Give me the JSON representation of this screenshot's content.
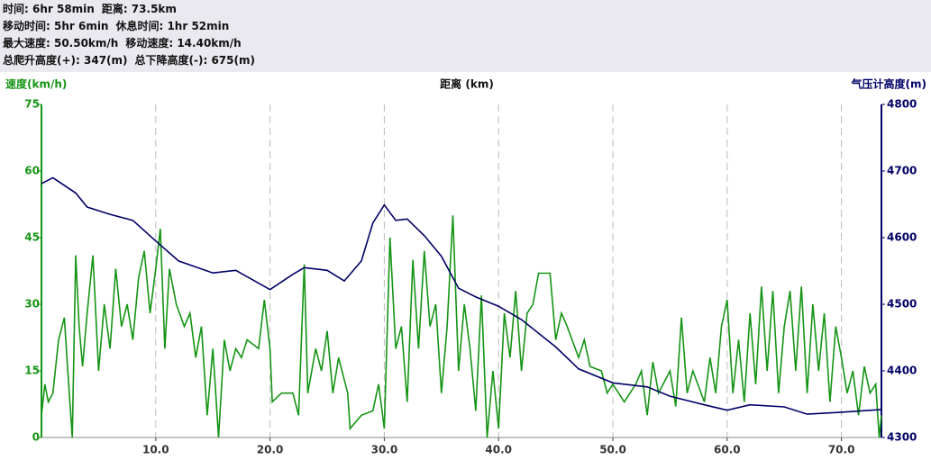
{
  "header": {
    "lines": [
      [
        "时间: 6hr 58min",
        "距离: 73.5km"
      ],
      [
        "移动时间: 5hr 6min",
        "休息时间: 1hr 52min"
      ],
      [
        "最大速度: 50.50km/h",
        "移动速度: 14.40km/h"
      ],
      [
        "总爬升高度(+): 347(m)",
        "总下降高度(-): 675(m)"
      ]
    ]
  },
  "chart_data": {
    "type": "line",
    "x_label": "距离 (km)",
    "y_label": "速度(km/h)",
    "y2_label": "气压计高度(m)",
    "xlim": [
      0,
      73.5
    ],
    "xticks": [
      {
        "value": 10,
        "label": "10.0"
      },
      {
        "value": 20,
        "label": "20.0"
      },
      {
        "value": 30,
        "label": "30.0"
      },
      {
        "value": 40,
        "label": "40.0"
      },
      {
        "value": 50,
        "label": "50.0"
      },
      {
        "value": 60,
        "label": "60.0"
      },
      {
        "value": 70,
        "label": "70.0"
      }
    ],
    "ylim": [
      0,
      75
    ],
    "yticks": [
      0,
      15,
      30,
      45,
      60,
      75
    ],
    "y2lim": [
      4300,
      4800
    ],
    "y2ticks": [
      4300,
      4400,
      4500,
      4600,
      4700,
      4800
    ],
    "grid": true,
    "series": [
      {
        "name": "速度",
        "axis": "y",
        "color": "#159415",
        "x": [
          0,
          0.3,
          0.6,
          1,
          1.5,
          2,
          2.3,
          2.7,
          3,
          3.3,
          3.6,
          4,
          4.5,
          5,
          5.5,
          6,
          6.5,
          7,
          7.5,
          8,
          8.5,
          9,
          9.5,
          10,
          10.4,
          10.8,
          11.2,
          11.8,
          12.5,
          13,
          13.5,
          14,
          14.5,
          15,
          15.5,
          16,
          16.5,
          17,
          17.5,
          18,
          19,
          19.5,
          20,
          20.2,
          21,
          22,
          22.5,
          23,
          23.3,
          24,
          24.5,
          25,
          25.5,
          26,
          26.8,
          27,
          28,
          29,
          29.5,
          30,
          30.5,
          31,
          31.5,
          32,
          32.5,
          33,
          33.5,
          34,
          34.5,
          35,
          35.5,
          36,
          36.5,
          37,
          37.5,
          38,
          38.5,
          39,
          39.5,
          40,
          40.5,
          41,
          41.5,
          42,
          42.5,
          43,
          43.5,
          44.5,
          45,
          45.5,
          46,
          47,
          47.5,
          48,
          49,
          49.5,
          50,
          51,
          52,
          52.5,
          53,
          53.5,
          54,
          55,
          55.5,
          56,
          56.5,
          57,
          58,
          58.5,
          59,
          59.5,
          60,
          60.5,
          61,
          61.5,
          62,
          62.5,
          63,
          63.5,
          64,
          64.5,
          65,
          65.5,
          66,
          66.5,
          67,
          67.5,
          68,
          68.5,
          69,
          69.5,
          70,
          70.5,
          71,
          71.5,
          72,
          72.5,
          73,
          73.3,
          73.5
        ],
        "values": [
          5,
          12,
          8,
          10,
          22,
          27,
          15,
          0,
          41,
          25,
          16,
          28,
          41,
          15,
          30,
          20,
          38,
          25,
          30,
          22,
          36,
          42,
          28,
          38,
          47,
          20,
          38,
          30,
          25,
          28,
          18,
          25,
          5,
          20,
          0,
          22,
          15,
          20,
          18,
          22,
          20,
          31,
          20,
          8,
          10,
          10,
          5,
          39,
          10,
          20,
          15,
          24,
          10,
          18,
          10,
          2,
          5,
          6,
          12,
          2,
          45,
          20,
          25,
          8,
          40,
          20,
          42,
          25,
          30,
          10,
          25,
          50,
          15,
          30,
          20,
          6,
          32,
          0,
          15,
          2,
          28,
          18,
          33,
          15,
          28,
          30,
          37,
          37,
          22,
          28,
          25,
          18,
          22,
          16,
          15,
          10,
          12,
          8,
          12,
          15,
          5,
          17,
          10,
          15,
          7,
          27,
          10,
          15,
          8,
          18,
          10,
          25,
          31,
          10,
          22,
          8,
          28,
          12,
          34,
          15,
          33,
          10,
          25,
          33,
          15,
          34,
          10,
          30,
          15,
          28,
          8,
          25,
          18,
          10,
          15,
          5,
          16,
          10,
          12,
          0,
          5
        ]
      },
      {
        "name": "气压计高度",
        "axis": "y2",
        "color": "#000066",
        "x": [
          0,
          1,
          3,
          4,
          6,
          8,
          10,
          12,
          15,
          17,
          20,
          22,
          23,
          25,
          26.5,
          28,
          29,
          30,
          31,
          32,
          33.5,
          35,
          36.5,
          38,
          40,
          42,
          45,
          47,
          50,
          53,
          55,
          58,
          60,
          62,
          65,
          67,
          70,
          73.5
        ],
        "values": [
          4681,
          4690,
          4667,
          4646,
          4635,
          4626,
          4595,
          4565,
          4547,
          4551,
          4522,
          4545,
          4555,
          4551,
          4535,
          4565,
          4622,
          4649,
          4626,
          4628,
          4603,
          4572,
          4524,
          4511,
          4497,
          4477,
          4436,
          4403,
          4382,
          4376,
          4362,
          4349,
          4341,
          4349,
          4346,
          4335,
          4338,
          4342
        ]
      }
    ]
  }
}
